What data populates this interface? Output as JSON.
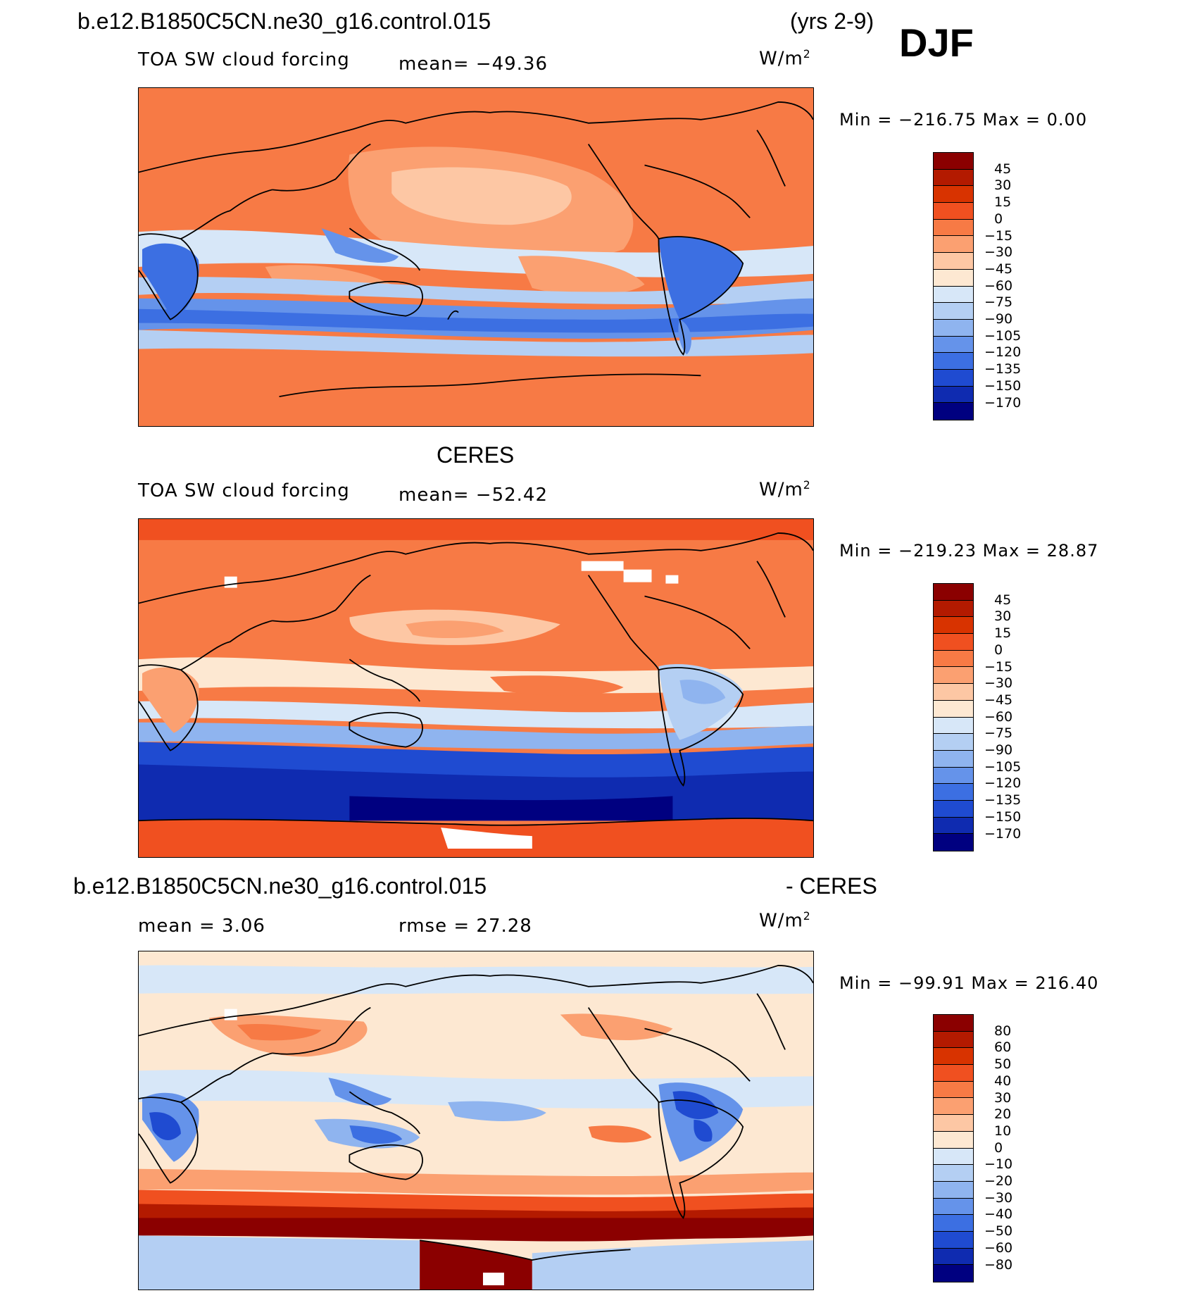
{
  "header": {
    "case_name": "b.e12.B1850C5CN.ne30_g16.control.015",
    "years": "(yrs 2-9)",
    "season": "DJF"
  },
  "panels": [
    {
      "id": "model",
      "top_title": "",
      "variable": "TOA SW cloud forcing",
      "stat_left": "mean= −49.36",
      "stat_right": "",
      "units": "W/m",
      "units_exp": "2",
      "min_max": "Min = −216.75 Max =   0.00",
      "colorbar_labels": [
        "45",
        "30",
        "15",
        "0",
        "−15",
        "−30",
        "−45",
        "−60",
        "−75",
        "−90",
        "−105",
        "−120",
        "−135",
        "−150",
        "−170"
      ],
      "colorbar_colors": [
        "#8b0000",
        "#b31a00",
        "#d83300",
        "#f05020",
        "#f77a45",
        "#fba071",
        "#fdc7a4",
        "#fde8d2",
        "#d7e7f8",
        "#b4cff3",
        "#8fb4ef",
        "#6593ea",
        "#3c6fe2",
        "#1f4bd1",
        "#0f2bb0",
        "#000080"
      ]
    },
    {
      "id": "obs",
      "top_title": "CERES",
      "variable": "TOA SW cloud forcing",
      "stat_left": "mean= −52.42",
      "stat_right": "",
      "units": "W/m",
      "units_exp": "2",
      "min_max": "Min = −219.23 Max =  28.87",
      "colorbar_labels": [
        "45",
        "30",
        "15",
        "0",
        "−15",
        "−30",
        "−45",
        "−60",
        "−75",
        "−90",
        "−105",
        "−120",
        "−135",
        "−150",
        "−170"
      ],
      "colorbar_colors": [
        "#8b0000",
        "#b31a00",
        "#d83300",
        "#f05020",
        "#f77a45",
        "#fba071",
        "#fdc7a4",
        "#fde8d2",
        "#d7e7f8",
        "#b4cff3",
        "#8fb4ef",
        "#6593ea",
        "#3c6fe2",
        "#1f4bd1",
        "#0f2bb0",
        "#000080"
      ]
    },
    {
      "id": "diff",
      "top_title": "b.e12.B1850C5CN.ne30_g16.control.015",
      "top_title_right": "- CERES",
      "variable": "",
      "stat_left": "mean =    3.06",
      "stat_right": "rmse =  27.28",
      "units": "W/m",
      "units_exp": "2",
      "min_max": "Min = −99.91 Max = 216.40",
      "colorbar_labels": [
        "80",
        "60",
        "50",
        "40",
        "30",
        "20",
        "10",
        "0",
        "−10",
        "−20",
        "−30",
        "−40",
        "−50",
        "−60",
        "−80"
      ],
      "colorbar_colors": [
        "#8b0000",
        "#b31a00",
        "#d83300",
        "#f05020",
        "#f77a45",
        "#fba071",
        "#fdc7a4",
        "#fde8d2",
        "#d7e7f8",
        "#b4cff3",
        "#8fb4ef",
        "#6593ea",
        "#3c6fe2",
        "#1f4bd1",
        "#0f2bb0",
        "#000080"
      ]
    }
  ]
}
